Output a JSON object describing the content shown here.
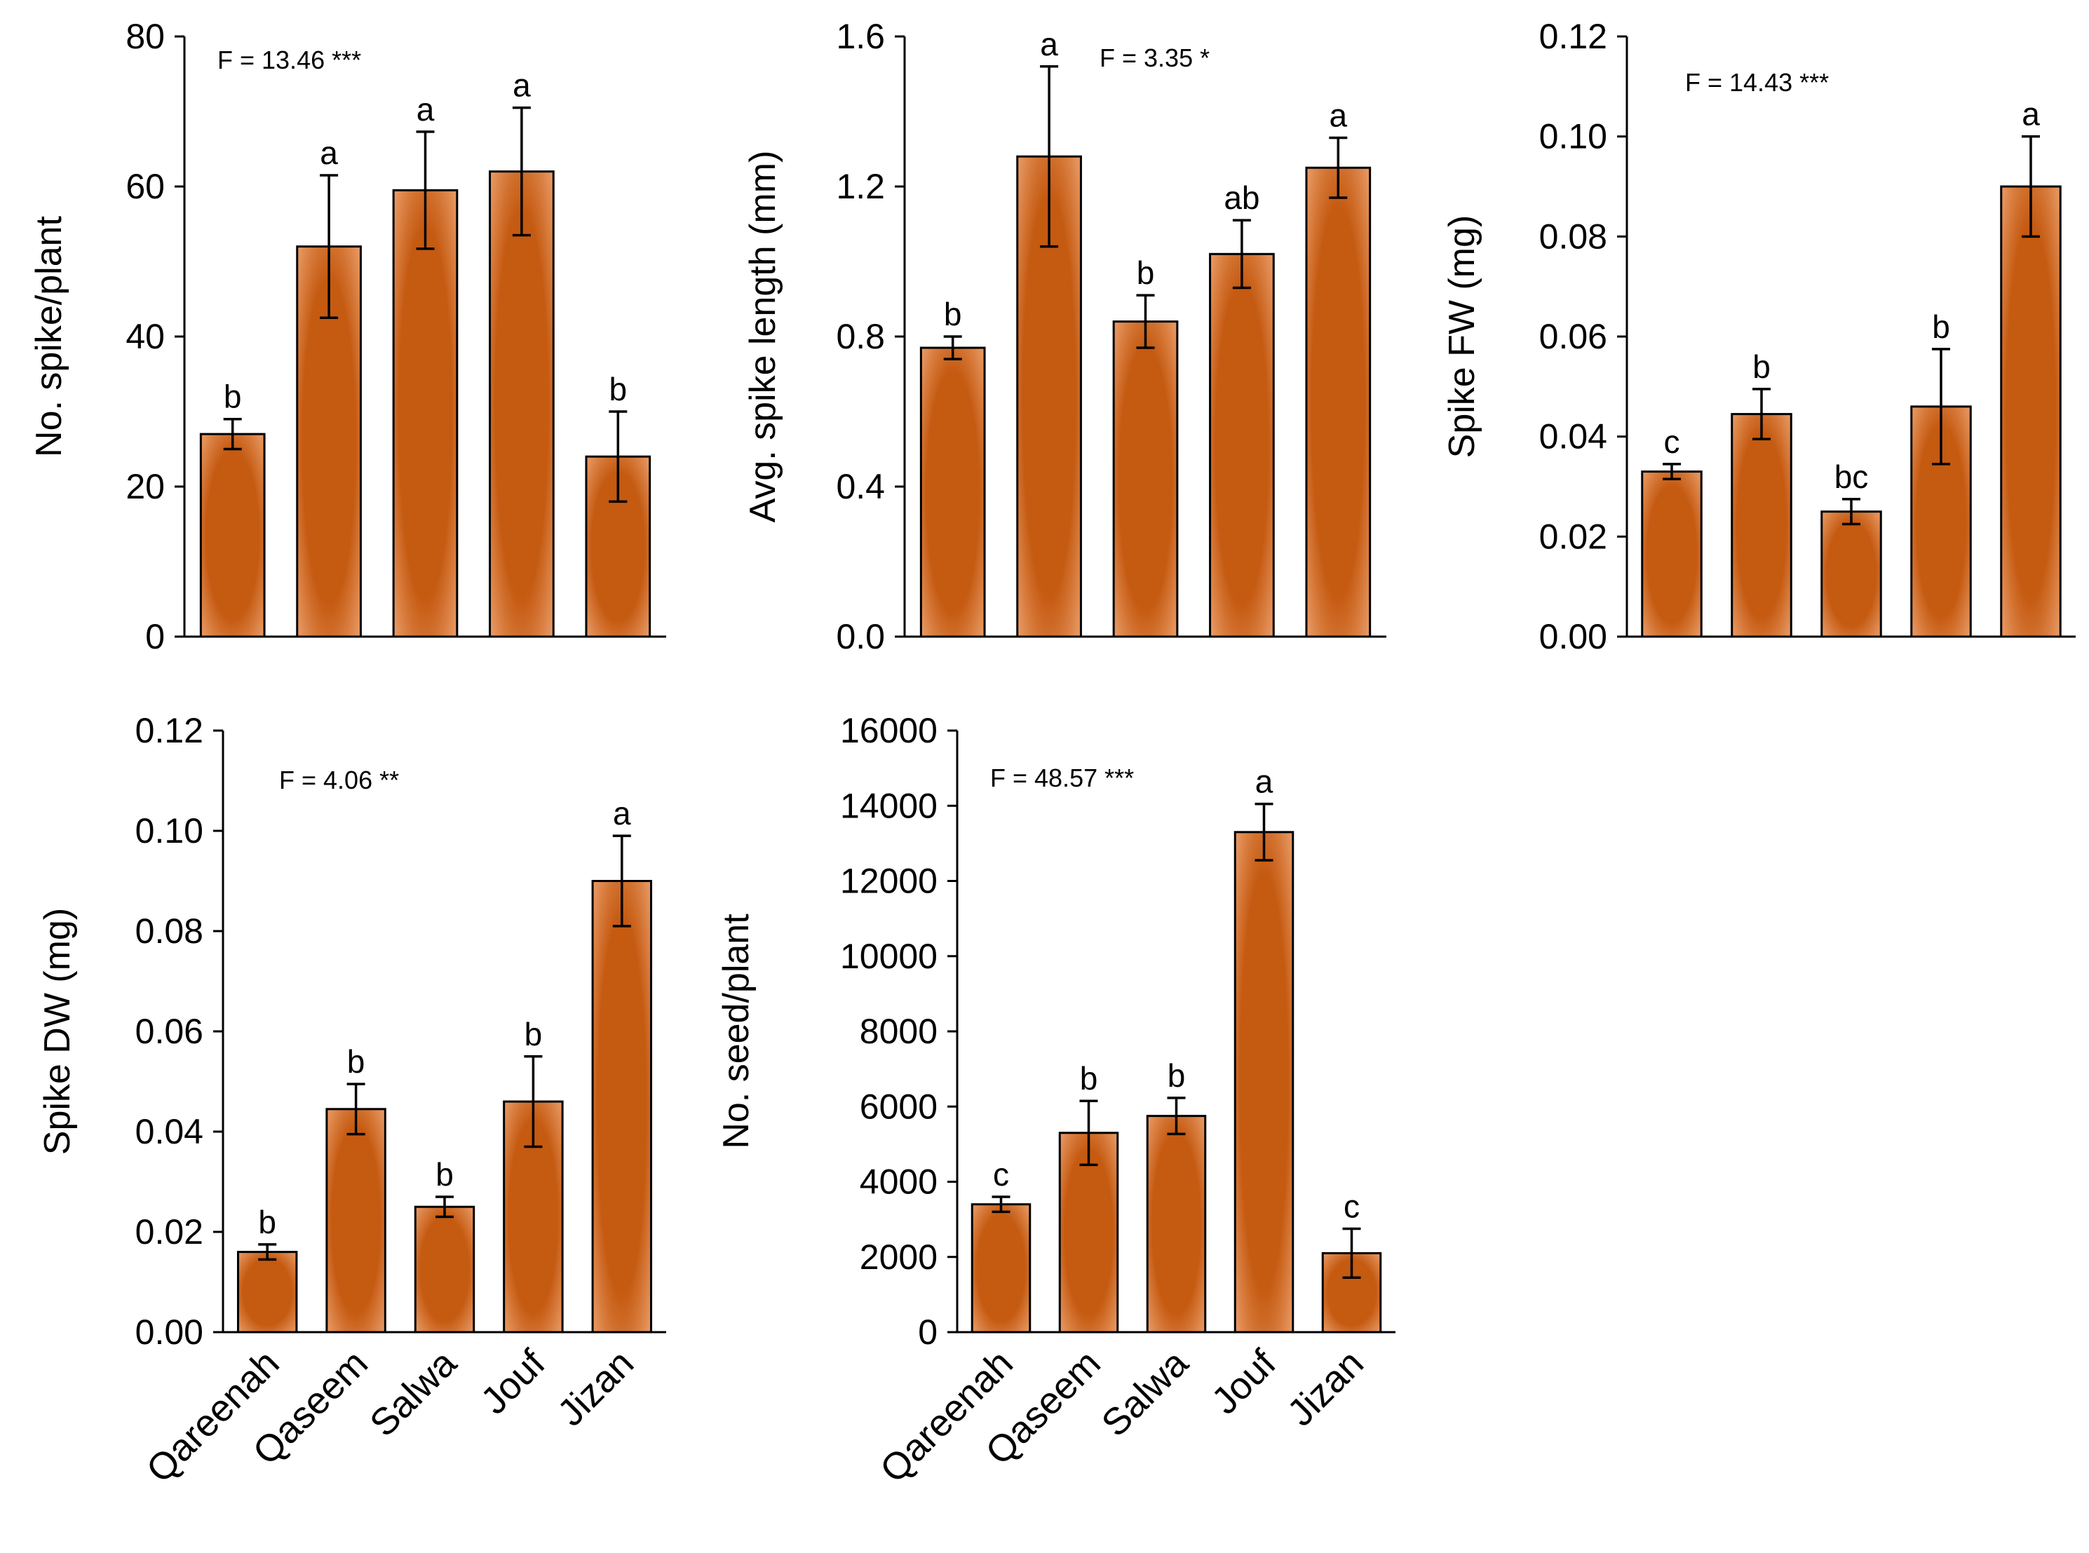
{
  "colors": {
    "bar": "#c55a11",
    "bar_glow": "#f0a878",
    "axis": "#000000"
  },
  "chart_data": [
    {
      "type": "bar",
      "categories": [
        "Qareenah",
        "Qaseem",
        "Salwa",
        "Jouf",
        "Jizan"
      ],
      "values": [
        27,
        52,
        59.5,
        62,
        24
      ],
      "errors": [
        2,
        9.5,
        7.8,
        8.5,
        6
      ],
      "letters": [
        "b",
        "a",
        "a",
        "a",
        "b"
      ],
      "ylabel": "No. spike/plant",
      "ylim": [
        0,
        80
      ],
      "yticks": [
        "0",
        "20",
        "40",
        "60",
        "80"
      ],
      "annotation": "F = 13.46 ***",
      "show_categories": false
    },
    {
      "type": "bar",
      "categories": [
        "Qareenah",
        "Qaseem",
        "Salwa",
        "Jouf",
        "Jizan"
      ],
      "values": [
        0.77,
        1.28,
        0.84,
        1.02,
        1.25
      ],
      "errors": [
        0.03,
        0.24,
        0.07,
        0.09,
        0.08
      ],
      "letters": [
        "b",
        "a",
        "b",
        "ab",
        "a"
      ],
      "ylabel": "Avg. spike length (mm)",
      "ylim": [
        0,
        1.6
      ],
      "yticks": [
        "0.0",
        "0.4",
        "0.8",
        "1.2",
        "1.6"
      ],
      "annotation": "F = 3.35 *",
      "show_categories": false
    },
    {
      "type": "bar",
      "categories": [
        "Qareenah",
        "Qaseem",
        "Salwa",
        "Jouf",
        "Jizan"
      ],
      "values": [
        0.033,
        0.0445,
        0.025,
        0.046,
        0.09
      ],
      "errors": [
        0.0015,
        0.005,
        0.0025,
        0.0115,
        0.01
      ],
      "letters": [
        "c",
        "b",
        "bc",
        "b",
        "a"
      ],
      "ylabel": "Spike FW (mg)",
      "ylim": [
        0,
        0.12
      ],
      "yticks": [
        "0.00",
        "0.02",
        "0.04",
        "0.06",
        "0.08",
        "0.10",
        "0.12"
      ],
      "annotation": "F = 14.43 ***",
      "show_categories": false
    },
    {
      "type": "bar",
      "categories": [
        "Qareenah",
        "Qaseem",
        "Salwa",
        "Jouf",
        "Jizan"
      ],
      "values": [
        0.016,
        0.0445,
        0.025,
        0.046,
        0.09
      ],
      "errors": [
        0.0015,
        0.005,
        0.002,
        0.009,
        0.009
      ],
      "letters": [
        "b",
        "b",
        "b",
        "b",
        "a"
      ],
      "ylabel": "Spike DW (mg)",
      "ylim": [
        0,
        0.12
      ],
      "yticks": [
        "0.00",
        "0.02",
        "0.04",
        "0.06",
        "0.08",
        "0.10",
        "0.12"
      ],
      "annotation": "F = 4.06 **",
      "show_categories": true
    },
    {
      "type": "bar",
      "categories": [
        "Qareenah",
        "Qaseem",
        "Salwa",
        "Jouf",
        "Jizan"
      ],
      "values": [
        3400,
        5300,
        5750,
        13300,
        2100
      ],
      "errors": [
        200,
        850,
        480,
        750,
        650
      ],
      "letters": [
        "c",
        "b",
        "b",
        "a",
        "c"
      ],
      "ylabel": "No. seed/plant",
      "ylim": [
        0,
        16000
      ],
      "yticks": [
        "0",
        "2000",
        "4000",
        "6000",
        "8000",
        "10000",
        "12000",
        "14000",
        "16000"
      ],
      "annotation": "F = 48.57 ***",
      "show_categories": true
    }
  ]
}
